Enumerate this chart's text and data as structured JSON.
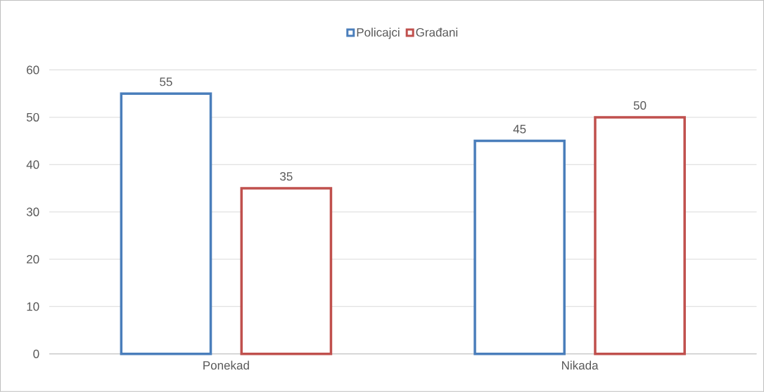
{
  "chart_data": {
    "type": "bar",
    "categories": [
      "Ponekad",
      "Nikada"
    ],
    "series": [
      {
        "name": "Policajci",
        "color": "#4a7ebb",
        "values": [
          55,
          45
        ]
      },
      {
        "name": "Građani",
        "color": "#c0504d",
        "values": [
          35,
          50
        ]
      }
    ],
    "ylim": [
      0,
      60
    ],
    "yticks": [
      0,
      10,
      20,
      30,
      40,
      50,
      60
    ],
    "grid": "y",
    "legend": "top",
    "data_labels": true
  }
}
